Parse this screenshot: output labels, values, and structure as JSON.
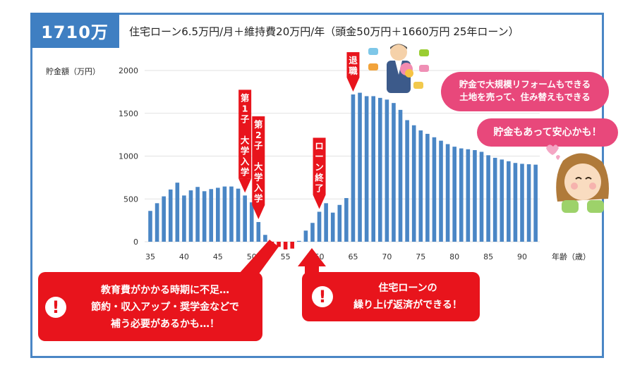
{
  "badge_text": "1710万",
  "header_text": "住宅ローン6.5万円/月＋維持費20万円/年（頭金50万円＋1660万円 25年ローン）",
  "chart_data": {
    "type": "bar",
    "ylabel": "貯金額（万円）",
    "xlabel": "年齢（歳）",
    "ylim": [
      0,
      2000
    ],
    "yticks": [
      0,
      500,
      1000,
      1500,
      2000
    ],
    "xticks": [
      35,
      40,
      45,
      50,
      55,
      60,
      65,
      70,
      75,
      80,
      85,
      90
    ],
    "x": [
      35,
      36,
      37,
      38,
      39,
      40,
      41,
      42,
      43,
      44,
      45,
      46,
      47,
      48,
      49,
      50,
      51,
      52,
      53,
      54,
      55,
      56,
      57,
      58,
      59,
      60,
      61,
      62,
      63,
      64,
      65,
      66,
      67,
      68,
      69,
      70,
      71,
      72,
      73,
      74,
      75,
      76,
      77,
      78,
      79,
      80,
      81,
      82,
      83,
      84,
      85,
      86,
      87,
      88,
      89,
      90,
      91,
      92
    ],
    "values": [
      360,
      450,
      530,
      610,
      690,
      540,
      600,
      640,
      590,
      615,
      630,
      645,
      645,
      620,
      540,
      460,
      230,
      80,
      -15,
      -60,
      -90,
      -80,
      10,
      130,
      220,
      350,
      450,
      340,
      430,
      510,
      1720,
      1740,
      1700,
      1700,
      1680,
      1660,
      1620,
      1540,
      1420,
      1360,
      1300,
      1260,
      1220,
      1180,
      1140,
      1110,
      1090,
      1080,
      1070,
      1050,
      1010,
      980,
      960,
      940,
      920,
      910,
      905,
      900
    ],
    "bar_color": "#4a86c5",
    "negative_color": "#e8141c",
    "grid": true
  },
  "markers": [
    {
      "label": "第1子 大学入学",
      "age": 49
    },
    {
      "label": "第2子 大学入学",
      "age": 51
    },
    {
      "label": "ローン終了",
      "age": 60
    },
    {
      "label": "退職",
      "age": 65
    }
  ],
  "right_bubble_1": {
    "line1": "貯金で大規模リフォームもできる",
    "line2": "土地を売って、住み替えもできる"
  },
  "right_bubble_2": "貯金もあって安心かも！",
  "callout_left": {
    "line1": "教育費がかかる時期に不足…",
    "line2": "節約・収入アップ・奨学金などで",
    "line3": "補う必要があるかも…！"
  },
  "callout_right": {
    "line1": "住宅ローンの",
    "line2": "繰り上げ返済ができる！"
  },
  "excl_mark": "!"
}
